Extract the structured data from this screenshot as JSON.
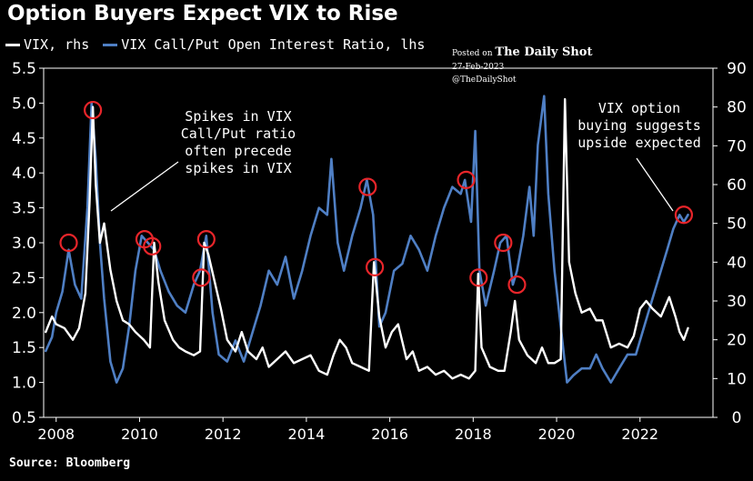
{
  "title": "Option Buyers Expect VIX to Rise",
  "legend": {
    "vix_label": "VIX, rhs",
    "ratio_label": "VIX Call/Put Open Interest Ratio, lhs"
  },
  "credit": {
    "posted_on": "Posted on",
    "publisher": "The Daily Shot",
    "date": "27-Feb-2023",
    "handle": "@TheDailyShot"
  },
  "source": "Source: Bloomberg",
  "annotations": {
    "left": [
      "Spikes in VIX",
      "Call/Put ratio",
      "often precede",
      "spikes in VIX"
    ],
    "right": [
      "VIX option",
      "buying suggests",
      "upside expected"
    ]
  },
  "colors": {
    "background": "#000000",
    "vix": "#ffffff",
    "ratio": "#4f7fc4",
    "circle": "#e8252a"
  },
  "chart_data": {
    "type": "line",
    "x_axis": {
      "ticks": [
        "2008",
        "2010",
        "2012",
        "2014",
        "2016",
        "2018",
        "2020",
        "2022"
      ],
      "range": [
        2007.7,
        2023.75
      ]
    },
    "y_left": {
      "ticks": [
        "0.5",
        "1.0",
        "1.5",
        "2.0",
        "2.5",
        "3.0",
        "3.5",
        "4.0",
        "4.5",
        "5.0",
        "5.5"
      ],
      "range": [
        0.5,
        5.5
      ]
    },
    "y_right": {
      "ticks": [
        "0",
        "10",
        "20",
        "30",
        "40",
        "50",
        "60",
        "70",
        "80",
        "90"
      ],
      "range": [
        0,
        90
      ]
    },
    "series": [
      {
        "name": "VIX Call/Put Open Interest Ratio, lhs",
        "axis": "left",
        "points": [
          [
            2007.75,
            1.45
          ],
          [
            2007.9,
            1.65
          ],
          [
            2008.0,
            2.0
          ],
          [
            2008.15,
            2.3
          ],
          [
            2008.3,
            2.9
          ],
          [
            2008.45,
            2.4
          ],
          [
            2008.6,
            2.2
          ],
          [
            2008.75,
            3.5
          ],
          [
            2008.85,
            5.0
          ],
          [
            2008.95,
            4.2
          ],
          [
            2009.05,
            3.0
          ],
          [
            2009.15,
            2.2
          ],
          [
            2009.3,
            1.3
          ],
          [
            2009.45,
            1.0
          ],
          [
            2009.6,
            1.2
          ],
          [
            2009.75,
            1.8
          ],
          [
            2009.9,
            2.6
          ],
          [
            2010.05,
            3.1
          ],
          [
            2010.2,
            3.0
          ],
          [
            2010.35,
            2.9
          ],
          [
            2010.5,
            2.6
          ],
          [
            2010.7,
            2.3
          ],
          [
            2010.9,
            2.1
          ],
          [
            2011.1,
            2.0
          ],
          [
            2011.3,
            2.4
          ],
          [
            2011.45,
            2.6
          ],
          [
            2011.6,
            3.1
          ],
          [
            2011.75,
            2.0
          ],
          [
            2011.9,
            1.4
          ],
          [
            2012.1,
            1.3
          ],
          [
            2012.3,
            1.6
          ],
          [
            2012.5,
            1.3
          ],
          [
            2012.7,
            1.7
          ],
          [
            2012.9,
            2.1
          ],
          [
            2013.1,
            2.6
          ],
          [
            2013.3,
            2.4
          ],
          [
            2013.5,
            2.8
          ],
          [
            2013.7,
            2.2
          ],
          [
            2013.9,
            2.6
          ],
          [
            2014.1,
            3.1
          ],
          [
            2014.3,
            3.5
          ],
          [
            2014.5,
            3.4
          ],
          [
            2014.6,
            4.2
          ],
          [
            2014.75,
            3.0
          ],
          [
            2014.9,
            2.6
          ],
          [
            2015.1,
            3.1
          ],
          [
            2015.3,
            3.5
          ],
          [
            2015.45,
            3.9
          ],
          [
            2015.6,
            3.4
          ],
          [
            2015.75,
            1.8
          ],
          [
            2015.9,
            2.0
          ],
          [
            2016.1,
            2.6
          ],
          [
            2016.3,
            2.7
          ],
          [
            2016.5,
            3.1
          ],
          [
            2016.7,
            2.9
          ],
          [
            2016.9,
            2.6
          ],
          [
            2017.1,
            3.1
          ],
          [
            2017.3,
            3.5
          ],
          [
            2017.5,
            3.8
          ],
          [
            2017.7,
            3.7
          ],
          [
            2017.8,
            3.9
          ],
          [
            2017.95,
            3.3
          ],
          [
            2018.05,
            4.6
          ],
          [
            2018.15,
            2.6
          ],
          [
            2018.3,
            2.1
          ],
          [
            2018.5,
            2.6
          ],
          [
            2018.65,
            3.0
          ],
          [
            2018.8,
            3.1
          ],
          [
            2018.95,
            2.4
          ],
          [
            2019.05,
            2.6
          ],
          [
            2019.2,
            3.1
          ],
          [
            2019.35,
            3.8
          ],
          [
            2019.45,
            3.1
          ],
          [
            2019.55,
            4.4
          ],
          [
            2019.7,
            5.1
          ],
          [
            2019.8,
            3.7
          ],
          [
            2019.95,
            2.6
          ],
          [
            2020.1,
            1.8
          ],
          [
            2020.25,
            1.0
          ],
          [
            2020.4,
            1.1
          ],
          [
            2020.6,
            1.2
          ],
          [
            2020.8,
            1.2
          ],
          [
            2020.95,
            1.4
          ],
          [
            2021.1,
            1.2
          ],
          [
            2021.3,
            1.0
          ],
          [
            2021.5,
            1.2
          ],
          [
            2021.7,
            1.4
          ],
          [
            2021.9,
            1.4
          ],
          [
            2022.1,
            1.8
          ],
          [
            2022.3,
            2.2
          ],
          [
            2022.5,
            2.6
          ],
          [
            2022.65,
            2.9
          ],
          [
            2022.8,
            3.2
          ],
          [
            2022.95,
            3.4
          ],
          [
            2023.05,
            3.3
          ],
          [
            2023.15,
            3.4
          ]
        ]
      },
      {
        "name": "VIX, rhs",
        "axis": "right",
        "points": [
          [
            2007.75,
            22
          ],
          [
            2007.9,
            26
          ],
          [
            2008.0,
            24
          ],
          [
            2008.2,
            23
          ],
          [
            2008.4,
            20
          ],
          [
            2008.55,
            23
          ],
          [
            2008.7,
            32
          ],
          [
            2008.8,
            55
          ],
          [
            2008.88,
            80
          ],
          [
            2008.95,
            60
          ],
          [
            2009.05,
            45
          ],
          [
            2009.15,
            50
          ],
          [
            2009.3,
            38
          ],
          [
            2009.45,
            30
          ],
          [
            2009.6,
            25
          ],
          [
            2009.75,
            24
          ],
          [
            2009.9,
            22
          ],
          [
            2010.1,
            20
          ],
          [
            2010.25,
            18
          ],
          [
            2010.35,
            45
          ],
          [
            2010.45,
            35
          ],
          [
            2010.6,
            25
          ],
          [
            2010.8,
            20
          ],
          [
            2010.95,
            18
          ],
          [
            2011.1,
            17
          ],
          [
            2011.3,
            16
          ],
          [
            2011.45,
            17
          ],
          [
            2011.55,
            45
          ],
          [
            2011.65,
            42
          ],
          [
            2011.8,
            35
          ],
          [
            2011.95,
            28
          ],
          [
            2012.1,
            20
          ],
          [
            2012.3,
            17
          ],
          [
            2012.45,
            22
          ],
          [
            2012.6,
            17
          ],
          [
            2012.8,
            15
          ],
          [
            2012.95,
            18
          ],
          [
            2013.1,
            13
          ],
          [
            2013.3,
            15
          ],
          [
            2013.5,
            17
          ],
          [
            2013.7,
            14
          ],
          [
            2013.9,
            15
          ],
          [
            2014.1,
            16
          ],
          [
            2014.3,
            12
          ],
          [
            2014.5,
            11
          ],
          [
            2014.65,
            16
          ],
          [
            2014.8,
            20
          ],
          [
            2014.95,
            18
          ],
          [
            2015.1,
            14
          ],
          [
            2015.3,
            13
          ],
          [
            2015.5,
            12
          ],
          [
            2015.62,
            40
          ],
          [
            2015.75,
            26
          ],
          [
            2015.9,
            18
          ],
          [
            2016.05,
            22
          ],
          [
            2016.2,
            24
          ],
          [
            2016.4,
            15
          ],
          [
            2016.55,
            17
          ],
          [
            2016.7,
            12
          ],
          [
            2016.9,
            13
          ],
          [
            2017.1,
            11
          ],
          [
            2017.3,
            12
          ],
          [
            2017.5,
            10
          ],
          [
            2017.7,
            11
          ],
          [
            2017.9,
            10
          ],
          [
            2018.05,
            12
          ],
          [
            2018.12,
            37
          ],
          [
            2018.2,
            18
          ],
          [
            2018.4,
            13
          ],
          [
            2018.6,
            12
          ],
          [
            2018.75,
            12
          ],
          [
            2018.9,
            22
          ],
          [
            2019.0,
            30
          ],
          [
            2019.1,
            20
          ],
          [
            2019.3,
            16
          ],
          [
            2019.5,
            14
          ],
          [
            2019.65,
            18
          ],
          [
            2019.8,
            14
          ],
          [
            2019.95,
            14
          ],
          [
            2020.1,
            15
          ],
          [
            2020.2,
            82
          ],
          [
            2020.3,
            40
          ],
          [
            2020.45,
            32
          ],
          [
            2020.6,
            27
          ],
          [
            2020.8,
            28
          ],
          [
            2020.95,
            25
          ],
          [
            2021.1,
            25
          ],
          [
            2021.3,
            18
          ],
          [
            2021.5,
            19
          ],
          [
            2021.7,
            18
          ],
          [
            2021.85,
            21
          ],
          [
            2022.0,
            28
          ],
          [
            2022.15,
            30
          ],
          [
            2022.3,
            28
          ],
          [
            2022.5,
            26
          ],
          [
            2022.7,
            31
          ],
          [
            2022.85,
            26
          ],
          [
            2022.95,
            22
          ],
          [
            2023.05,
            20
          ],
          [
            2023.15,
            23
          ]
        ]
      }
    ],
    "markers": [
      [
        2008.3,
        3.0
      ],
      [
        2008.88,
        4.9
      ],
      [
        2010.12,
        3.05
      ],
      [
        2010.3,
        2.95
      ],
      [
        2011.48,
        2.5
      ],
      [
        2011.6,
        3.05
      ],
      [
        2015.47,
        3.8
      ],
      [
        2015.64,
        2.65
      ],
      [
        2017.83,
        3.9
      ],
      [
        2018.13,
        2.5
      ],
      [
        2018.72,
        3.0
      ],
      [
        2019.05,
        2.4
      ],
      [
        2023.05,
        3.4
      ]
    ],
    "grid": false,
    "legend_position": "top-left"
  }
}
